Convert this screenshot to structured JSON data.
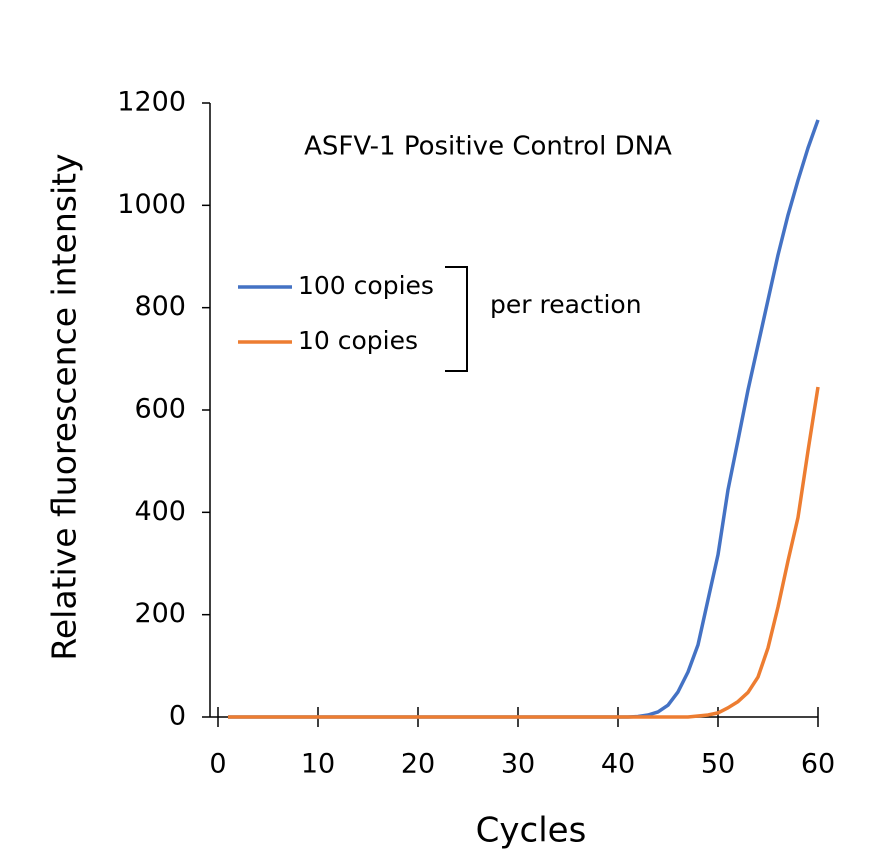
{
  "chart_data": {
    "type": "line",
    "annotation": "ASFV-1 Positive Control DNA",
    "x_label": "Cycles",
    "y_label": "Relative fluorescence intensity",
    "legend_group_label": "per reaction",
    "x": [
      1,
      2,
      3,
      4,
      5,
      6,
      7,
      8,
      9,
      10,
      11,
      12,
      13,
      14,
      15,
      16,
      17,
      18,
      19,
      20,
      21,
      22,
      23,
      24,
      25,
      26,
      27,
      28,
      29,
      30,
      31,
      32,
      33,
      34,
      35,
      36,
      37,
      38,
      39,
      40,
      41,
      42,
      43,
      44,
      45,
      46,
      47,
      48,
      49,
      50,
      51,
      52,
      53,
      54,
      55,
      56,
      57,
      58,
      59,
      60
    ],
    "series": [
      {
        "name": "100 copies",
        "color": "#4472c4",
        "values": [
          0,
          0,
          0,
          0,
          0,
          0,
          0,
          0,
          0,
          0,
          0,
          0,
          0,
          0,
          0,
          0,
          0,
          0,
          0,
          0,
          0,
          0,
          0,
          0,
          0,
          0,
          0,
          0,
          0,
          0,
          0,
          0,
          0,
          0,
          0,
          0,
          0,
          0,
          0,
          0,
          0,
          1,
          4,
          10,
          23,
          49,
          88,
          141,
          229,
          317,
          444,
          541,
          639,
          727,
          815,
          903,
          981,
          1049,
          1112,
          1167
        ]
      },
      {
        "name": "10 copies",
        "color": "#ed7d31",
        "values": [
          0,
          0,
          0,
          0,
          0,
          0,
          0,
          0,
          0,
          0,
          0,
          0,
          0,
          0,
          0,
          0,
          0,
          0,
          0,
          0,
          0,
          0,
          0,
          0,
          0,
          0,
          0,
          0,
          0,
          0,
          0,
          0,
          0,
          0,
          0,
          0,
          0,
          0,
          0,
          0,
          0,
          0,
          0,
          0,
          0,
          0,
          0,
          2,
          4,
          8,
          18,
          30,
          48,
          78,
          135,
          215,
          305,
          390,
          520,
          645
        ]
      }
    ],
    "xlim": [
      0,
      60
    ],
    "xticks": [
      0,
      10,
      20,
      30,
      40,
      50,
      60
    ],
    "ylim": [
      0,
      1200
    ],
    "yticks": [
      0,
      200,
      400,
      600,
      800,
      1000,
      1200
    ]
  }
}
